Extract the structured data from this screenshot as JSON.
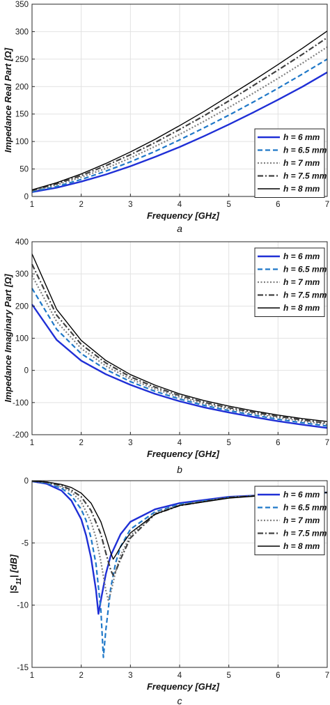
{
  "chart_data": [
    {
      "type": "line",
      "caption": "a",
      "xlabel": "Frequency [GHz]",
      "ylabel": "Impedance Real Part [Ω]",
      "xlim": [
        1,
        7
      ],
      "ylim": [
        0,
        350
      ],
      "xticks": [
        1,
        2,
        3,
        4,
        5,
        6,
        7
      ],
      "yticks": [
        0,
        50,
        100,
        150,
        200,
        250,
        300,
        350
      ],
      "grid": true,
      "legend": "bottom-right",
      "series": [
        {
          "name": "h = 6 mm",
          "x": [
            1,
            1.5,
            2,
            2.5,
            3,
            3.5,
            4,
            4.5,
            5,
            5.5,
            6,
            6.5,
            7
          ],
          "values": [
            8,
            16,
            27,
            40,
            55,
            72,
            90,
            110,
            131,
            153,
            176,
            200,
            226
          ]
        },
        {
          "name": "h = 6.5 mm",
          "x": [
            1,
            1.5,
            2,
            2.5,
            3,
            3.5,
            4,
            4.5,
            5,
            5.5,
            6,
            6.5,
            7
          ],
          "values": [
            9,
            18,
            31,
            46,
            63,
            82,
            103,
            125,
            148,
            172,
            197,
            223,
            250
          ]
        },
        {
          "name": "h = 7 mm",
          "x": [
            1,
            1.5,
            2,
            2.5,
            3,
            3.5,
            4,
            4.5,
            5,
            5.5,
            6,
            6.5,
            7
          ],
          "values": [
            10,
            21,
            35,
            51,
            70,
            91,
            113,
            137,
            162,
            188,
            215,
            243,
            272
          ]
        },
        {
          "name": "h = 7.5 mm",
          "x": [
            1,
            1.5,
            2,
            2.5,
            3,
            3.5,
            4,
            4.5,
            5,
            5.5,
            6,
            6.5,
            7
          ],
          "values": [
            11,
            23,
            38,
            56,
            76,
            98,
            122,
            147,
            174,
            202,
            230,
            259,
            289
          ]
        },
        {
          "name": "h = 8 mm",
          "x": [
            1,
            1.5,
            2,
            2.5,
            3,
            3.5,
            4,
            4.5,
            5,
            5.5,
            6,
            6.5,
            7
          ],
          "values": [
            12,
            25,
            41,
            60,
            81,
            104,
            129,
            155,
            183,
            211,
            240,
            270,
            301
          ]
        }
      ]
    },
    {
      "type": "line",
      "caption": "b",
      "xlabel": "Frequency [GHz]",
      "ylabel": "Impedance Imaginary Part [Ω]",
      "xlim": [
        1,
        7
      ],
      "ylim": [
        -200,
        400
      ],
      "xticks": [
        1,
        2,
        3,
        4,
        5,
        6,
        7
      ],
      "yticks": [
        -200,
        -100,
        0,
        100,
        200,
        300,
        400
      ],
      "grid": true,
      "legend": "top-right",
      "series": [
        {
          "name": "h = 6 mm",
          "x": [
            1,
            1.5,
            2,
            2.5,
            3,
            3.5,
            4,
            4.5,
            5,
            5.5,
            6,
            6.5,
            7
          ],
          "values": [
            205,
            95,
            30,
            -12,
            -45,
            -73,
            -96,
            -115,
            -131,
            -145,
            -158,
            -169,
            -179
          ]
        },
        {
          "name": "h = 6.5 mm",
          "x": [
            1,
            1.5,
            2,
            2.5,
            3,
            3.5,
            4,
            4.5,
            5,
            5.5,
            6,
            6.5,
            7
          ],
          "values": [
            255,
            128,
            52,
            3,
            -35,
            -65,
            -89,
            -109,
            -125,
            -139,
            -152,
            -163,
            -173
          ]
        },
        {
          "name": "h = 7 mm",
          "x": [
            1,
            1.5,
            2,
            2.5,
            3,
            3.5,
            4,
            4.5,
            5,
            5.5,
            6,
            6.5,
            7
          ],
          "values": [
            295,
            152,
            68,
            14,
            -27,
            -58,
            -83,
            -104,
            -120,
            -134,
            -147,
            -158,
            -168
          ]
        },
        {
          "name": "h = 7.5 mm",
          "x": [
            1,
            1.5,
            2,
            2.5,
            3,
            3.5,
            4,
            4.5,
            5,
            5.5,
            6,
            6.5,
            7
          ],
          "values": [
            330,
            172,
            81,
            23,
            -20,
            -52,
            -78,
            -99,
            -116,
            -130,
            -143,
            -154,
            -164
          ]
        },
        {
          "name": "h = 8 mm",
          "x": [
            1,
            1.5,
            2,
            2.5,
            3,
            3.5,
            4,
            4.5,
            5,
            5.5,
            6,
            6.5,
            7
          ],
          "values": [
            362,
            190,
            93,
            31,
            -13,
            -46,
            -73,
            -94,
            -111,
            -126,
            -139,
            -150,
            -159
          ]
        }
      ]
    },
    {
      "type": "line",
      "caption": "c",
      "xlabel": "Frequency [GHz]",
      "ylabel": "|S11| [dB]",
      "xlim": [
        1,
        7
      ],
      "ylim": [
        -15,
        0
      ],
      "xticks": [
        1,
        2,
        3,
        4,
        5,
        6,
        7
      ],
      "yticks": [
        -15,
        -10,
        -5,
        0
      ],
      "grid": true,
      "legend": "top-right",
      "series": [
        {
          "name": "h = 6 mm",
          "x": [
            1,
            1.3,
            1.6,
            1.8,
            2.0,
            2.1,
            2.2,
            2.3,
            2.35,
            2.4,
            2.5,
            2.6,
            2.8,
            3.0,
            3.5,
            4,
            5,
            6,
            7
          ],
          "values": [
            -0.05,
            -0.25,
            -0.8,
            -1.6,
            -3.1,
            -4.4,
            -6.2,
            -8.8,
            -10.7,
            -9.6,
            -7.5,
            -6.0,
            -4.3,
            -3.3,
            -2.3,
            -1.8,
            -1.3,
            -1.1,
            -0.95
          ]
        },
        {
          "name": "h = 6.5 mm",
          "x": [
            1,
            1.3,
            1.6,
            1.8,
            2.0,
            2.1,
            2.2,
            2.3,
            2.4,
            2.45,
            2.5,
            2.6,
            2.7,
            2.8,
            3.0,
            3.5,
            4,
            5,
            6,
            7
          ],
          "values": [
            -0.04,
            -0.2,
            -0.6,
            -1.2,
            -2.3,
            -3.2,
            -4.6,
            -6.7,
            -10.4,
            -14.2,
            -12.0,
            -8.6,
            -6.6,
            -5.3,
            -3.9,
            -2.5,
            -1.9,
            -1.35,
            -1.1,
            -0.95
          ]
        },
        {
          "name": "h = 7 mm",
          "x": [
            1,
            1.3,
            1.6,
            1.8,
            2.0,
            2.2,
            2.3,
            2.4,
            2.5,
            2.55,
            2.6,
            2.7,
            2.8,
            3.0,
            3.5,
            4,
            5,
            6,
            7
          ],
          "values": [
            -0.03,
            -0.15,
            -0.5,
            -0.9,
            -1.7,
            -3.3,
            -4.6,
            -6.5,
            -8.8,
            -9.6,
            -9.0,
            -7.3,
            -6.0,
            -4.4,
            -2.6,
            -1.95,
            -1.35,
            -1.1,
            -0.95
          ]
        },
        {
          "name": "h = 7.5 mm",
          "x": [
            1,
            1.3,
            1.6,
            1.8,
            2.0,
            2.2,
            2.4,
            2.5,
            2.6,
            2.65,
            2.7,
            2.8,
            3.0,
            3.5,
            4,
            5,
            6,
            7
          ],
          "values": [
            -0.03,
            -0.12,
            -0.4,
            -0.75,
            -1.3,
            -2.4,
            -4.3,
            -5.8,
            -7.2,
            -7.6,
            -7.3,
            -6.3,
            -4.6,
            -2.7,
            -2.0,
            -1.35,
            -1.1,
            -0.95
          ]
        },
        {
          "name": "h = 8 mm",
          "x": [
            1,
            1.3,
            1.6,
            1.8,
            2.0,
            2.2,
            2.4,
            2.5,
            2.6,
            2.65,
            2.7,
            2.8,
            3.0,
            3.5,
            4,
            5,
            6,
            7
          ],
          "values": [
            -0.02,
            -0.1,
            -0.3,
            -0.55,
            -1.0,
            -1.8,
            -3.3,
            -4.5,
            -5.8,
            -6.3,
            -6.0,
            -5.3,
            -4.2,
            -2.7,
            -2.0,
            -1.4,
            -1.1,
            -0.95
          ]
        }
      ]
    }
  ]
}
